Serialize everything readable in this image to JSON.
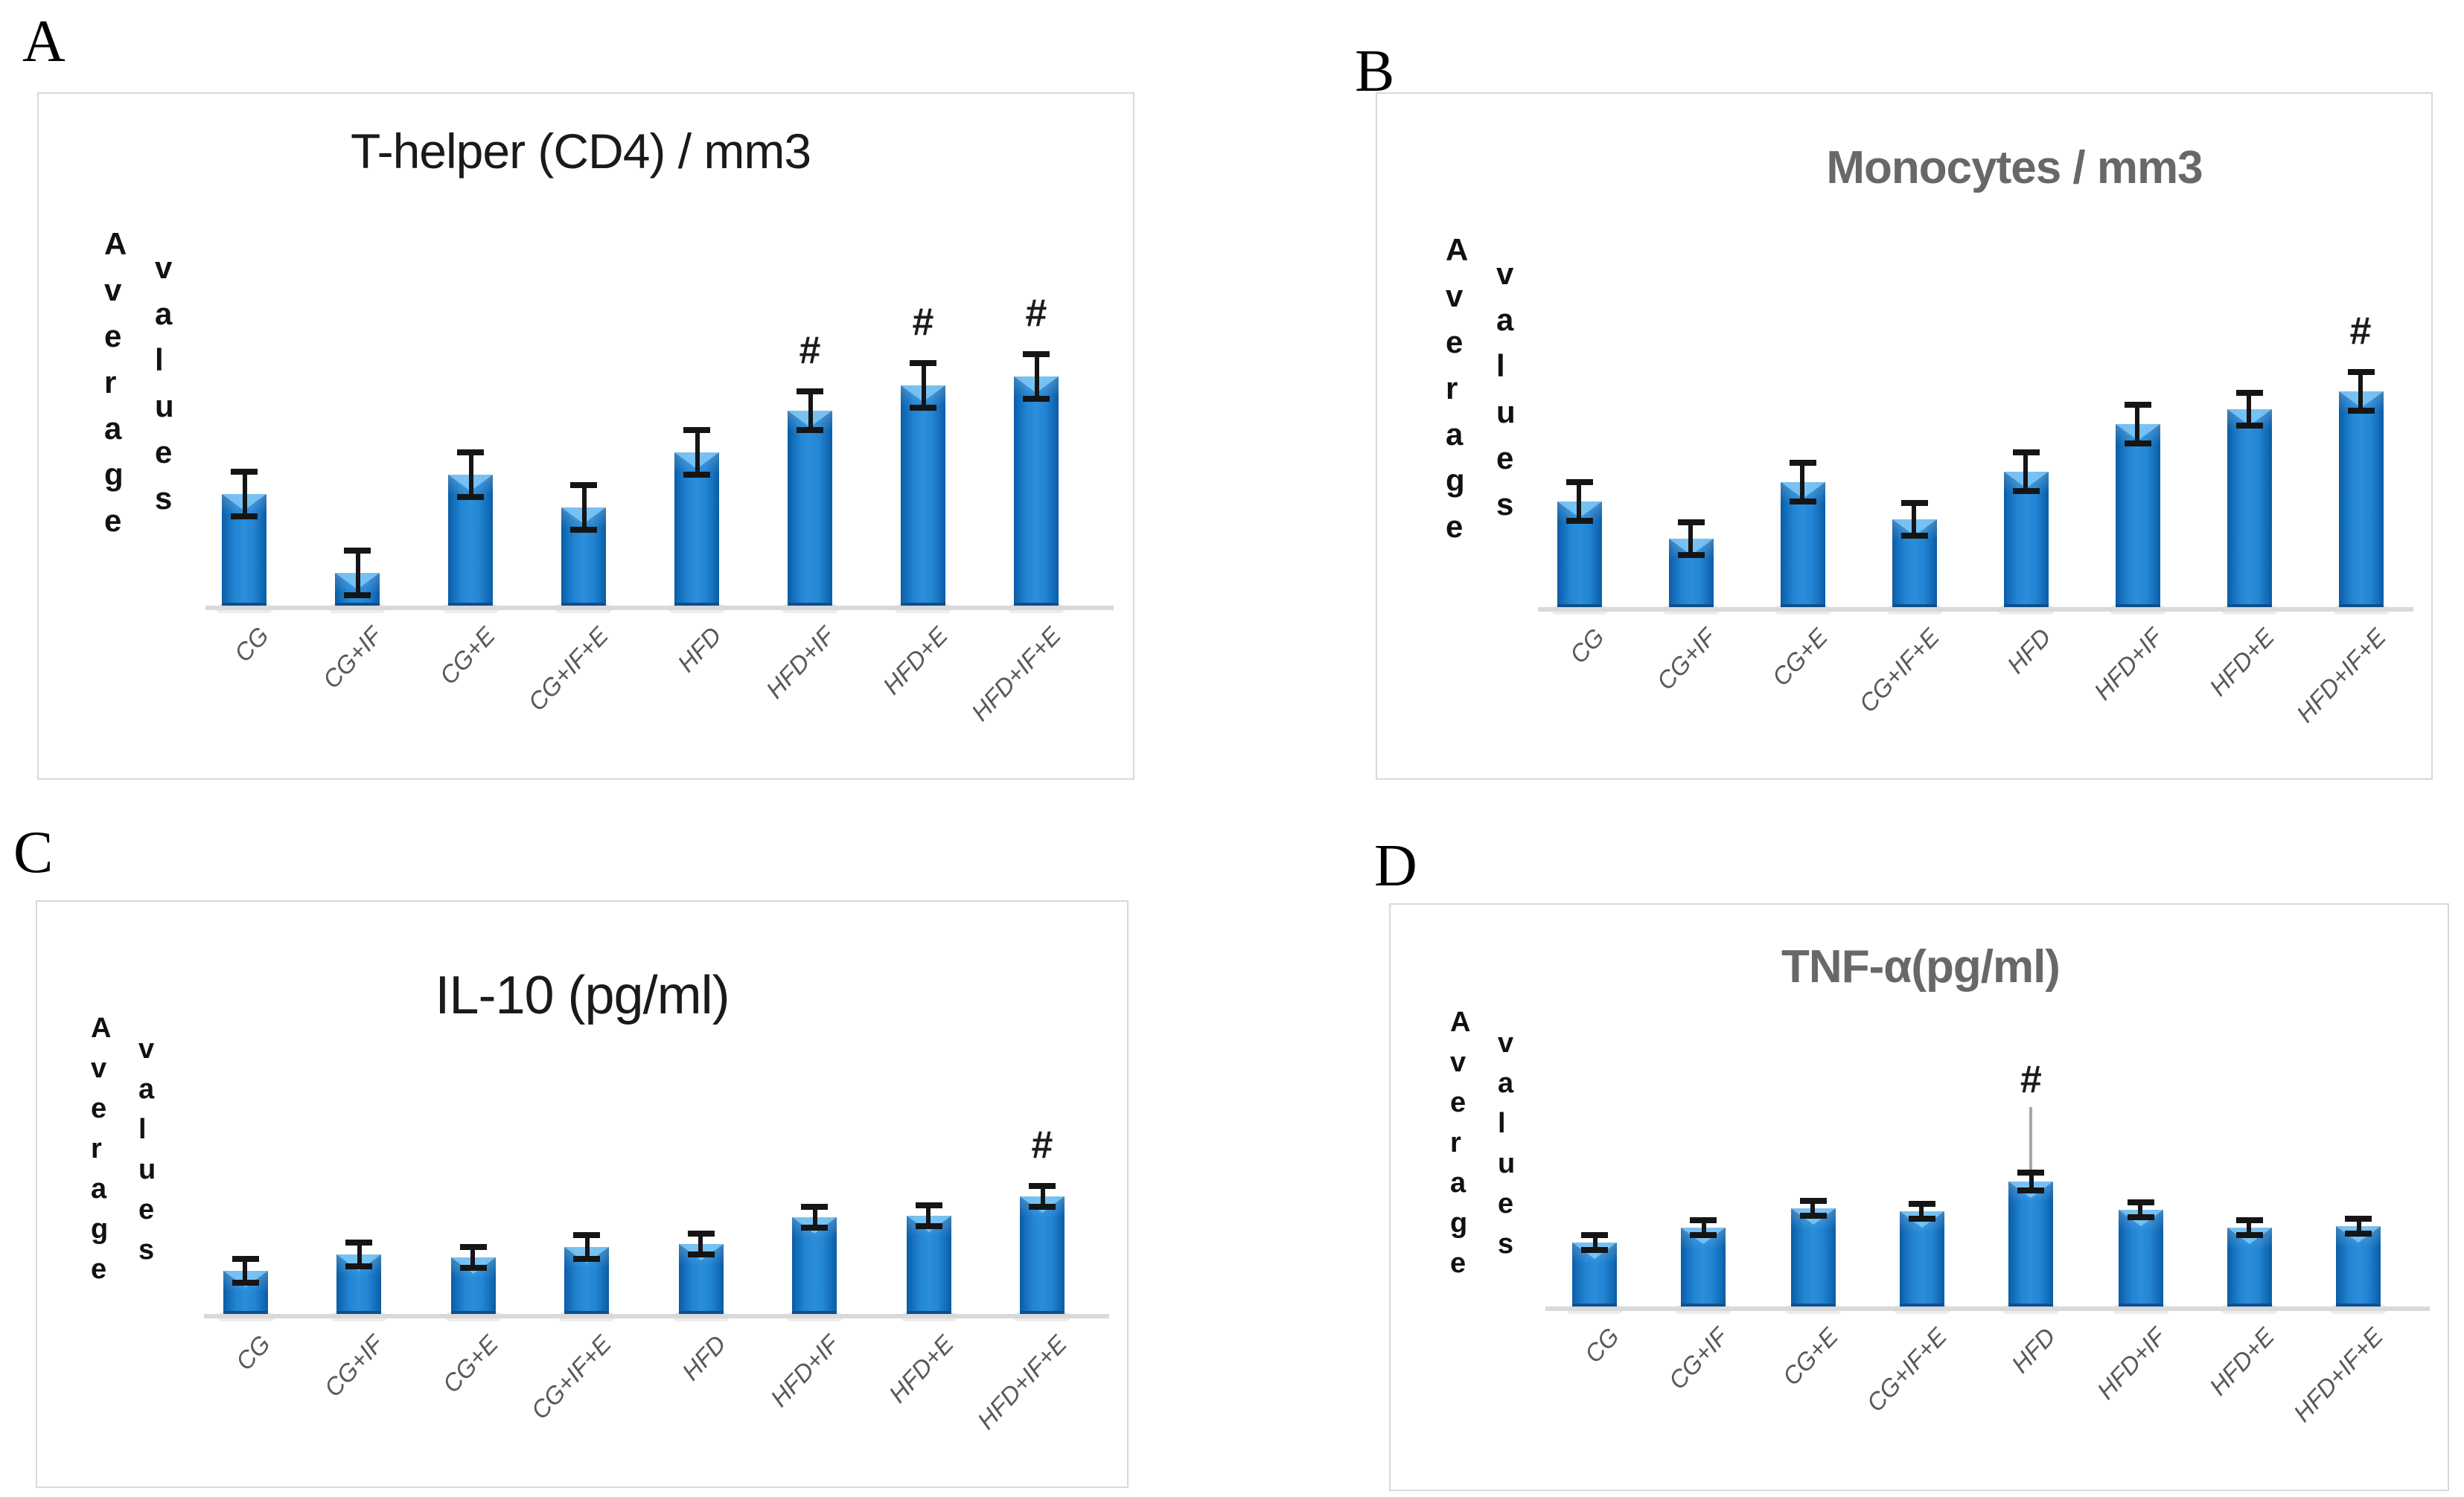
{
  "figure_labels": [
    "A",
    "B",
    "C",
    "D"
  ],
  "ylabel_word_1": "Average",
  "ylabel_word_2": "values",
  "hash_symbol": "#",
  "categories": [
    "CG",
    "CG+IF",
    "CG+E",
    "CG+IF+E",
    "HFD",
    "HFD+IF",
    "HFD+E",
    "HFD+IF+E"
  ],
  "style": {
    "bar_main_color": "#2385d3",
    "bar_edge_color": "#0b5ca4",
    "bar_notch_color": "#84cdfa",
    "baseline_color": "#d9d9d9",
    "error_bar_color": "#151515",
    "x_tick_color": "#595959",
    "panel_border_color": "#d9d9d9",
    "hash_color": "#1c1c1c",
    "title_black": "#1a1a1a",
    "title_gray": "#686868"
  },
  "chart_data": [
    {
      "panel": "A",
      "type": "bar",
      "title": "T-helper (CD4) / mm3",
      "title_color": "#1a1a1a",
      "ylabel": "Average values",
      "xlabel": "",
      "ylim": [
        0,
        115
      ],
      "grid": false,
      "legend": null,
      "x_tick_rotation": -47,
      "categories": [
        "CG",
        "CG+IF",
        "CG+E",
        "CG+IF+E",
        "HFD",
        "HFD+IF",
        "HFD+E",
        "HFD+IF+E"
      ],
      "values": [
        49,
        14,
        57,
        43,
        67,
        85,
        96,
        100
      ],
      "errors": [
        11,
        11,
        11,
        11,
        11,
        10,
        11,
        11
      ],
      "hash_indices": [
        5,
        6,
        7
      ],
      "leader_line_indices": []
    },
    {
      "panel": "B",
      "type": "bar",
      "title": "Monocytes / mm3",
      "title_color": "#686868",
      "ylabel": "Average values",
      "xlabel": "",
      "ylim": [
        0,
        115
      ],
      "grid": false,
      "legend": null,
      "x_tick_rotation": -47,
      "categories": [
        "CG",
        "CG+IF",
        "CG+E",
        "CG+IF+E",
        "HFD",
        "HFD+IF",
        "HFD+E",
        "HFD+IF+E"
      ],
      "values": [
        49,
        32,
        58,
        41,
        63,
        85,
        92,
        100
      ],
      "errors": [
        10,
        9,
        10,
        9,
        10,
        10,
        9,
        10
      ],
      "hash_indices": [
        7
      ],
      "leader_line_indices": []
    },
    {
      "panel": "C",
      "type": "bar",
      "title": "IL-10 (pg/ml)",
      "title_color": "#1a1a1a",
      "ylabel": "Average values",
      "xlabel": "",
      "ylim": [
        0,
        115
      ],
      "grid": false,
      "legend": null,
      "x_tick_rotation": -47,
      "categories": [
        "CG",
        "CG+IF",
        "CG+E",
        "CG+IF+E",
        "HFD",
        "HFD+IF",
        "HFD+E",
        "HFD+IF+E"
      ],
      "values": [
        37,
        50,
        48,
        57,
        60,
        82,
        84,
        100
      ],
      "errors": [
        13,
        13,
        12,
        13,
        12,
        12,
        12,
        12
      ],
      "hash_indices": [
        7
      ],
      "leader_line_indices": []
    },
    {
      "panel": "D",
      "type": "bar",
      "title": "TNF-α(pg/ml)",
      "title_color": "#686868",
      "ylabel": "Average values",
      "xlabel": "",
      "ylim": [
        0,
        115
      ],
      "grid": false,
      "legend": null,
      "x_tick_rotation": -47,
      "categories": [
        "CG",
        "CG+IF",
        "CG+E",
        "CG+IF+E",
        "HFD",
        "HFD+IF",
        "HFD+E",
        "HFD+IF+E"
      ],
      "values": [
        51,
        63,
        79,
        76,
        100,
        77,
        63,
        64
      ],
      "errors": [
        8,
        8,
        8,
        8,
        9,
        8,
        8,
        8
      ],
      "hash_indices": [
        4
      ],
      "leader_line_indices": [
        4
      ]
    }
  ]
}
